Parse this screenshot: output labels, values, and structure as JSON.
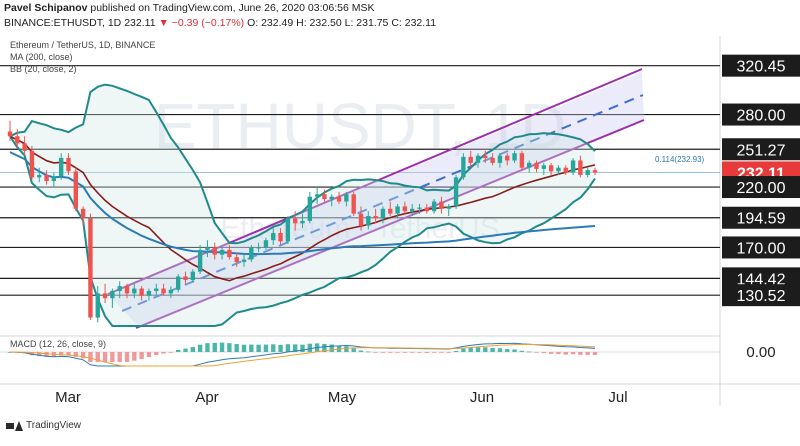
{
  "header": {
    "publisher_name": "Pavel Schipanov",
    "publisher_rest": "published on TradingView.com, June 26, 2020 03:06:56 MSK",
    "symbol_info": "BINANCE:ETHUSDT, 1D",
    "last": "232.11",
    "change": "▼ −0.39 (−0.17%)",
    "open": "O: 232.49",
    "high": "H: 232.50",
    "low": "L: 231.75",
    "close": "C: 232.11"
  },
  "legend": {
    "title": "Ethereum / TetherUS, 1D, BINANCE",
    "ma": "MA (200, close)",
    "bb": "BB (20, close, 2)",
    "macd": "MACD (12, 26, close, 9)"
  },
  "watermark": {
    "symbol": "ETHUSDT, 1D",
    "name": "Ethereum / TetherUS"
  },
  "fib_label": "0.114(232.93)",
  "footer": {
    "brand": "TradingView"
  },
  "colors": {
    "up": "#26a69a",
    "down": "#ef5350",
    "bb_band": "#1f8a8a",
    "ma200": "#2b7bb9",
    "channel": "#9b2fae",
    "ema": "#8b1c1c",
    "price_tag": "#e83a3a",
    "level_tag": "#1c1c1c"
  },
  "chart_data": {
    "type": "candlestick",
    "symbol": "ETHUSDT",
    "timeframe": "1D",
    "price_axis": [
      {
        "label": "320.45",
        "value": 320.45
      },
      {
        "label": "280.00",
        "value": 280.0
      },
      {
        "label": "251.27",
        "value": 251.27
      },
      {
        "label": "232.11",
        "value": 232.11,
        "current": true
      },
      {
        "label": "220.00",
        "value": 220.0
      },
      {
        "label": "194.59",
        "value": 194.59
      },
      {
        "label": "170.00",
        "value": 170.0
      },
      {
        "label": "144.42",
        "value": 144.42
      },
      {
        "label": "130.52",
        "value": 130.52
      }
    ],
    "macd_axis_label": "0.00",
    "time_axis": [
      "Mar",
      "Apr",
      "May",
      "Jun",
      "Jul"
    ],
    "ylim": [
      105,
      345
    ],
    "candles": [
      {
        "o": 266,
        "h": 275,
        "l": 258,
        "c": 262
      },
      {
        "o": 262,
        "h": 268,
        "l": 252,
        "c": 256
      },
      {
        "o": 256,
        "h": 262,
        "l": 246,
        "c": 250
      },
      {
        "o": 250,
        "h": 254,
        "l": 226,
        "c": 228
      },
      {
        "o": 228,
        "h": 236,
        "l": 224,
        "c": 230
      },
      {
        "o": 230,
        "h": 234,
        "l": 222,
        "c": 225
      },
      {
        "o": 225,
        "h": 232,
        "l": 220,
        "c": 229
      },
      {
        "o": 229,
        "h": 248,
        "l": 226,
        "c": 244
      },
      {
        "o": 244,
        "h": 248,
        "l": 230,
        "c": 233
      },
      {
        "o": 233,
        "h": 236,
        "l": 200,
        "c": 202
      },
      {
        "o": 202,
        "h": 204,
        "l": 188,
        "c": 194
      },
      {
        "o": 194,
        "h": 198,
        "l": 110,
        "c": 112
      },
      {
        "o": 112,
        "h": 138,
        "l": 108,
        "c": 132
      },
      {
        "o": 132,
        "h": 140,
        "l": 124,
        "c": 128
      },
      {
        "o": 128,
        "h": 136,
        "l": 120,
        "c": 134
      },
      {
        "o": 134,
        "h": 142,
        "l": 128,
        "c": 138
      },
      {
        "o": 138,
        "h": 140,
        "l": 128,
        "c": 132
      },
      {
        "o": 132,
        "h": 140,
        "l": 128,
        "c": 136
      },
      {
        "o": 136,
        "h": 138,
        "l": 126,
        "c": 130
      },
      {
        "o": 130,
        "h": 136,
        "l": 126,
        "c": 134
      },
      {
        "o": 134,
        "h": 140,
        "l": 130,
        "c": 136
      },
      {
        "o": 136,
        "h": 140,
        "l": 130,
        "c": 132
      },
      {
        "o": 132,
        "h": 138,
        "l": 128,
        "c": 135
      },
      {
        "o": 135,
        "h": 148,
        "l": 133,
        "c": 146
      },
      {
        "o": 146,
        "h": 150,
        "l": 140,
        "c": 143
      },
      {
        "o": 143,
        "h": 152,
        "l": 141,
        "c": 150
      },
      {
        "o": 150,
        "h": 172,
        "l": 148,
        "c": 168
      },
      {
        "o": 168,
        "h": 176,
        "l": 162,
        "c": 170
      },
      {
        "o": 170,
        "h": 174,
        "l": 160,
        "c": 164
      },
      {
        "o": 164,
        "h": 170,
        "l": 160,
        "c": 168
      },
      {
        "o": 168,
        "h": 172,
        "l": 160,
        "c": 162
      },
      {
        "o": 162,
        "h": 166,
        "l": 154,
        "c": 158
      },
      {
        "o": 158,
        "h": 164,
        "l": 154,
        "c": 160
      },
      {
        "o": 160,
        "h": 172,
        "l": 158,
        "c": 170
      },
      {
        "o": 170,
        "h": 174,
        "l": 166,
        "c": 170
      },
      {
        "o": 170,
        "h": 178,
        "l": 168,
        "c": 176
      },
      {
        "o": 176,
        "h": 186,
        "l": 172,
        "c": 182
      },
      {
        "o": 182,
        "h": 186,
        "l": 172,
        "c": 175
      },
      {
        "o": 175,
        "h": 196,
        "l": 173,
        "c": 194
      },
      {
        "o": 194,
        "h": 200,
        "l": 184,
        "c": 190
      },
      {
        "o": 190,
        "h": 198,
        "l": 186,
        "c": 192
      },
      {
        "o": 192,
        "h": 216,
        "l": 190,
        "c": 212
      },
      {
        "o": 212,
        "h": 220,
        "l": 206,
        "c": 214
      },
      {
        "o": 214,
        "h": 218,
        "l": 208,
        "c": 210
      },
      {
        "o": 210,
        "h": 214,
        "l": 204,
        "c": 212
      },
      {
        "o": 212,
        "h": 216,
        "l": 206,
        "c": 208
      },
      {
        "o": 208,
        "h": 216,
        "l": 204,
        "c": 214
      },
      {
        "o": 214,
        "h": 216,
        "l": 196,
        "c": 198
      },
      {
        "o": 198,
        "h": 204,
        "l": 184,
        "c": 188
      },
      {
        "o": 188,
        "h": 200,
        "l": 185,
        "c": 196
      },
      {
        "o": 196,
        "h": 202,
        "l": 190,
        "c": 194
      },
      {
        "o": 194,
        "h": 204,
        "l": 190,
        "c": 202
      },
      {
        "o": 202,
        "h": 208,
        "l": 196,
        "c": 198
      },
      {
        "o": 198,
        "h": 206,
        "l": 194,
        "c": 204
      },
      {
        "o": 204,
        "h": 208,
        "l": 198,
        "c": 200
      },
      {
        "o": 200,
        "h": 206,
        "l": 196,
        "c": 202
      },
      {
        "o": 202,
        "h": 206,
        "l": 198,
        "c": 203
      },
      {
        "o": 203,
        "h": 206,
        "l": 198,
        "c": 200
      },
      {
        "o": 200,
        "h": 210,
        "l": 198,
        "c": 208
      },
      {
        "o": 208,
        "h": 212,
        "l": 198,
        "c": 202
      },
      {
        "o": 202,
        "h": 206,
        "l": 196,
        "c": 204
      },
      {
        "o": 204,
        "h": 230,
        "l": 202,
        "c": 228
      },
      {
        "o": 228,
        "h": 248,
        "l": 226,
        "c": 245
      },
      {
        "o": 245,
        "h": 250,
        "l": 236,
        "c": 240
      },
      {
        "o": 240,
        "h": 248,
        "l": 236,
        "c": 246
      },
      {
        "o": 246,
        "h": 250,
        "l": 240,
        "c": 244
      },
      {
        "o": 244,
        "h": 248,
        "l": 238,
        "c": 240
      },
      {
        "o": 240,
        "h": 248,
        "l": 236,
        "c": 246
      },
      {
        "o": 246,
        "h": 248,
        "l": 238,
        "c": 242
      },
      {
        "o": 242,
        "h": 250,
        "l": 240,
        "c": 248
      },
      {
        "o": 248,
        "h": 250,
        "l": 234,
        "c": 236
      },
      {
        "o": 236,
        "h": 242,
        "l": 232,
        "c": 240
      },
      {
        "o": 240,
        "h": 242,
        "l": 232,
        "c": 235
      },
      {
        "o": 235,
        "h": 240,
        "l": 230,
        "c": 238
      },
      {
        "o": 238,
        "h": 240,
        "l": 230,
        "c": 233
      },
      {
        "o": 233,
        "h": 238,
        "l": 230,
        "c": 236
      },
      {
        "o": 236,
        "h": 238,
        "l": 230,
        "c": 232
      },
      {
        "o": 232,
        "h": 244,
        "l": 230,
        "c": 242
      },
      {
        "o": 242,
        "h": 246,
        "l": 228,
        "c": 230
      },
      {
        "o": 230,
        "h": 236,
        "l": 228,
        "c": 234
      },
      {
        "o": 234,
        "h": 236,
        "l": 230,
        "c": 232
      }
    ]
  }
}
